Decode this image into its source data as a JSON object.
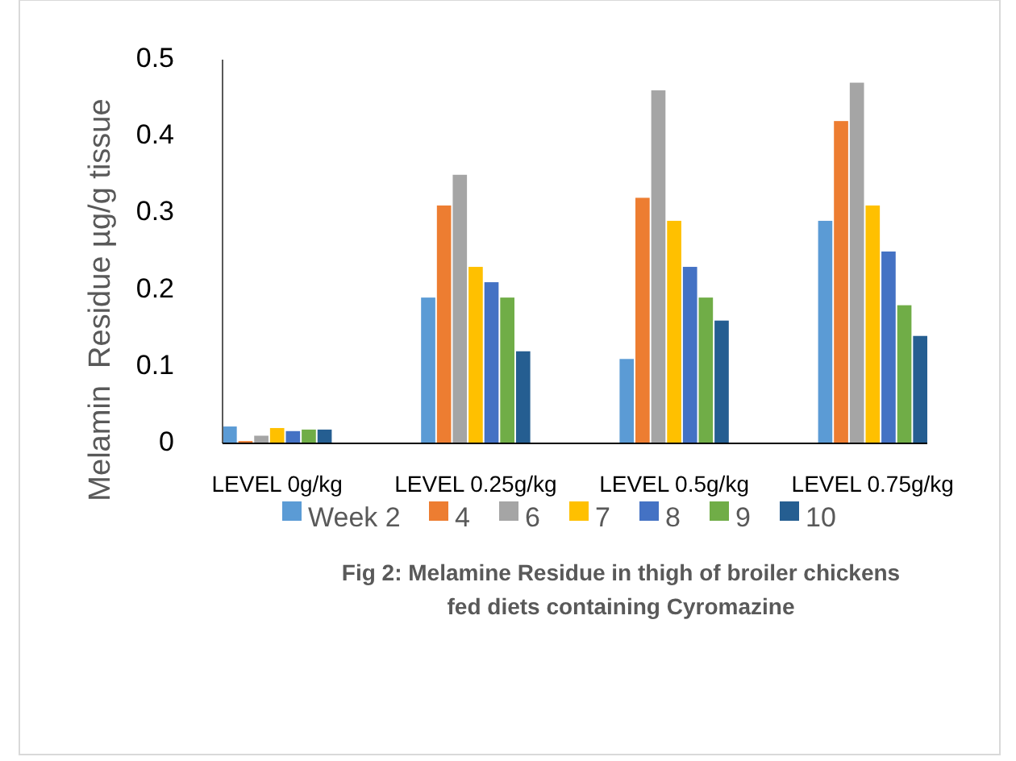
{
  "chart_data": {
    "type": "bar",
    "ylabel": "Melamin  Residue µg/g tissue",
    "categories": [
      "LEVEL 0g/kg",
      "LEVEL 0.25g/kg",
      "LEVEL 0.5g/kg",
      "LEVEL 0.75g/kg"
    ],
    "series": [
      {
        "name": "Week 2",
        "color": "#5b9bd5",
        "values": [
          0.022,
          0.19,
          0.11,
          0.29
        ]
      },
      {
        "name": "4",
        "color": "#ed7d31",
        "values": [
          0.003,
          0.31,
          0.32,
          0.42
        ]
      },
      {
        "name": "6",
        "color": "#a5a5a5",
        "values": [
          0.01,
          0.35,
          0.46,
          0.47
        ]
      },
      {
        "name": "7",
        "color": "#ffc000",
        "values": [
          0.02,
          0.23,
          0.29,
          0.31
        ]
      },
      {
        "name": "8",
        "color": "#4472c4",
        "values": [
          0.016,
          0.21,
          0.23,
          0.25
        ]
      },
      {
        "name": "9",
        "color": "#70ad47",
        "values": [
          0.018,
          0.19,
          0.19,
          0.18
        ]
      },
      {
        "name": "10",
        "color": "#255e91",
        "values": [
          0.018,
          0.12,
          0.16,
          0.14
        ]
      }
    ],
    "ylim": [
      0,
      0.5
    ],
    "yticks": [
      0,
      0.1,
      0.2,
      0.3,
      0.4,
      0.5
    ],
    "legend": "bottom",
    "annotations": [
      "Fig 2: Melamine Residue in thigh of broiler chickens fed diets containing Cyromazine"
    ]
  }
}
